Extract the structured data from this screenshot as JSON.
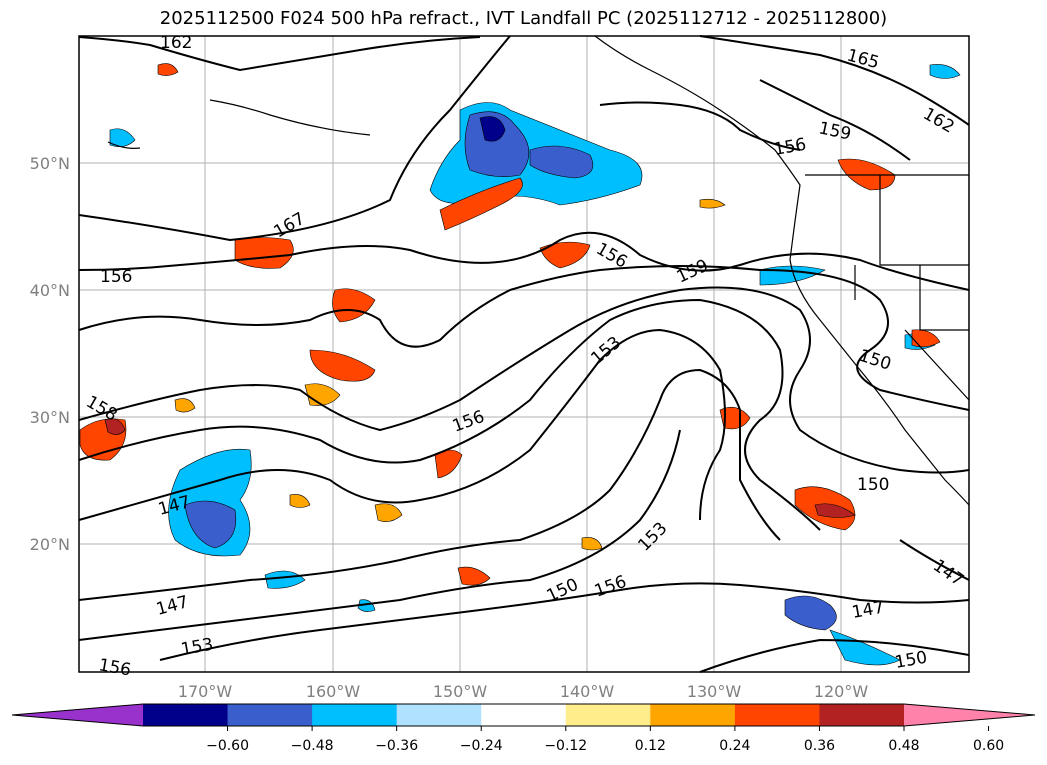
{
  "title": "2025112500 F024 500 hPa refract., IVT Landfall PC (2025112712 - 2025112800)",
  "latitude_labels": [
    "50°N",
    "40°N",
    "30°N",
    "20°N"
  ],
  "longitude_labels": [
    "170°W",
    "160°W",
    "150°W",
    "140°W",
    "130°W",
    "120°W"
  ],
  "colorbar": {
    "ticks": [
      "−0.60",
      "−0.48",
      "−0.36",
      "−0.24",
      "−0.12",
      "0.12",
      "0.24",
      "0.36",
      "0.48",
      "0.60"
    ],
    "colors": [
      "#9932cc",
      "#00008b",
      "#3a5fcd",
      "#00bfff",
      "#b0e2ff",
      "#ffffff",
      "#ffec8b",
      "#ffa500",
      "#ff4500",
      "#b22222",
      "#ff82ab"
    ]
  },
  "contour_labels": [
    "162",
    "165",
    "159",
    "162",
    "156",
    "167",
    "156",
    "156",
    "159",
    "153",
    "150",
    "158",
    "156",
    "150",
    "147",
    "153",
    "147",
    "153",
    "150",
    "156",
    "147",
    "147",
    "150",
    "156"
  ],
  "colors": {
    "land_outline": "#000000",
    "grid": "#b0b0b0",
    "contour": "#000000"
  }
}
